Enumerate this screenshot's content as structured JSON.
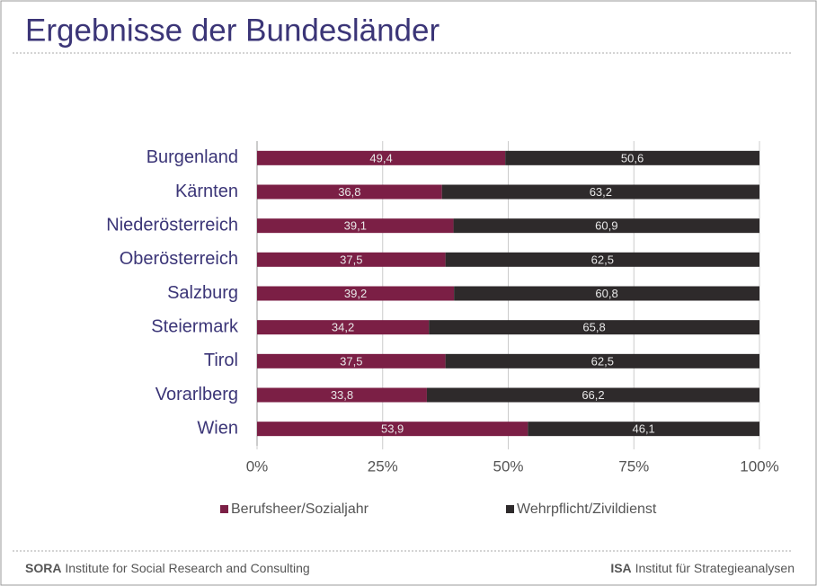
{
  "chart_data": {
    "type": "stacked_barh",
    "title": "Ergebnisse der Bundesländer",
    "categories": [
      "Burgenland",
      "Kärnten",
      "Niederösterreich",
      "Oberösterreich",
      "Salzburg",
      "Steiermark",
      "Tirol",
      "Vorarlberg",
      "Wien"
    ],
    "series": [
      {
        "name": "Berufsheer/Sozialjahr",
        "color": "#7b1f45",
        "values": [
          49.4,
          36.8,
          39.1,
          37.5,
          39.2,
          34.2,
          37.5,
          33.8,
          53.9
        ],
        "value_labels": [
          "49,4",
          "36,8",
          "39,1",
          "37,5",
          "39,2",
          "34,2",
          "37,5",
          "33,8",
          "53,9"
        ]
      },
      {
        "name": "Wehrpflicht/Zivildienst",
        "color": "#2e2a2b",
        "values": [
          50.6,
          63.2,
          60.9,
          62.5,
          60.8,
          65.8,
          62.5,
          66.2,
          46.1
        ],
        "value_labels": [
          "50,6",
          "63,2",
          "60,9",
          "62,5",
          "60,8",
          "65,8",
          "62,5",
          "66,2",
          "46,1"
        ]
      }
    ],
    "xlim": [
      0,
      100
    ],
    "xticks": [
      {
        "value": 0,
        "label": "0%"
      },
      {
        "value": 25,
        "label": "25%"
      },
      {
        "value": 50,
        "label": "50%"
      },
      {
        "value": 75,
        "label": "75%"
      },
      {
        "value": 100,
        "label": "100%"
      }
    ],
    "grid": true,
    "legend": "bottom"
  },
  "footer": {
    "left_bold": "SORA",
    "left": "Institute for Social Research and Consulting",
    "right_bold": "ISA",
    "right": "Institut für Strategieanalysen"
  }
}
